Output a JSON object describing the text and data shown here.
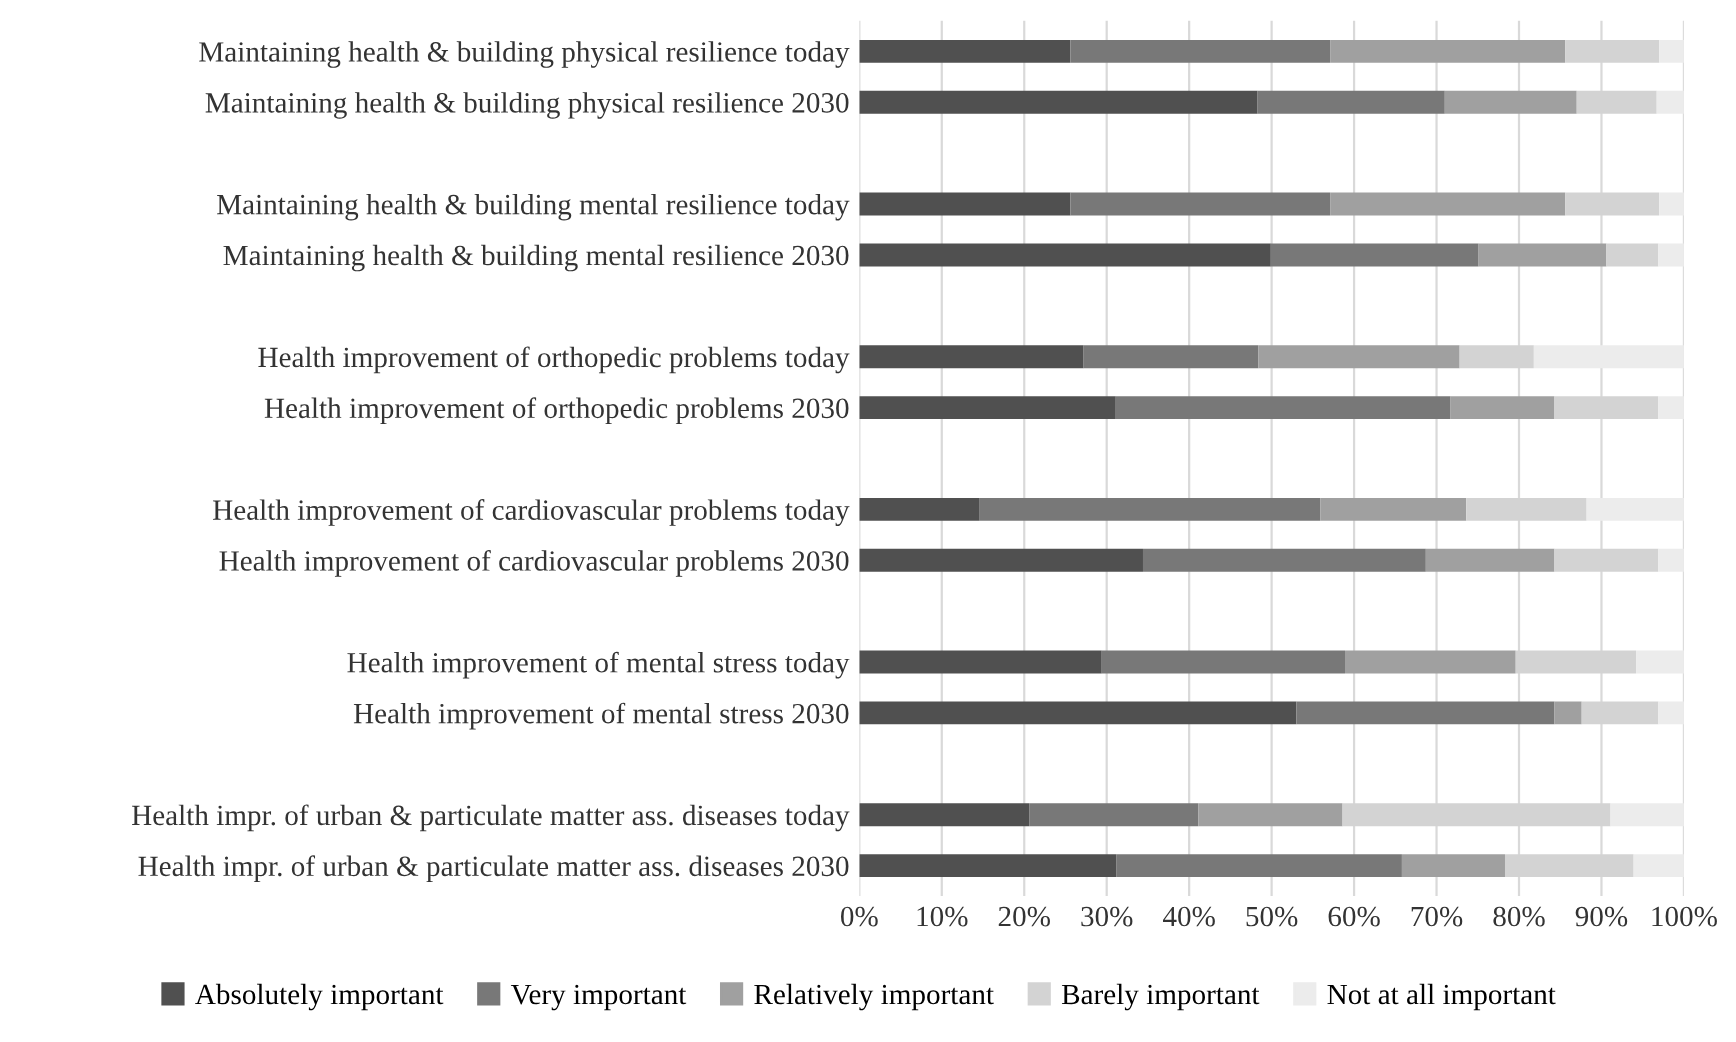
{
  "chart_data": {
    "type": "bar",
    "orientation": "horizontal",
    "stacked": true,
    "categories": [
      "Maintaining health & building physical resilience today",
      "Maintaining health & building physical resilience 2030",
      "Maintaining health & building mental resilience today",
      "Maintaining health & building mental resilience 2030",
      "Health improvement of orthopedic problems today",
      "Health improvement of orthopedic problems 2030",
      "Health improvement of cardiovascular problems today",
      "Health improvement of cardiovascular problems 2030",
      "Health improvement of mental stress today",
      "Health improvement of mental stress 2030",
      "Health impr. of urban & particulate matter ass. diseases today",
      "Health impr. of urban & particulate matter ass. diseases 2030"
    ],
    "series": [
      {
        "name": "Absolutely important",
        "color": "#505050",
        "values": [
          25.6,
          48.3,
          25.6,
          49.9,
          27.2,
          31.1,
          14.6,
          34.4,
          29.4,
          53.0,
          20.6,
          31.2
        ]
      },
      {
        "name": "Very important",
        "color": "#787878",
        "values": [
          31.5,
          22.7,
          31.5,
          25.2,
          21.2,
          40.6,
          41.3,
          34.3,
          29.5,
          31.3,
          20.5,
          34.6
        ]
      },
      {
        "name": "Relatively important",
        "color": "#a0a0a0",
        "values": [
          28.5,
          16.0,
          28.5,
          15.5,
          24.4,
          12.6,
          17.7,
          15.6,
          20.7,
          3.3,
          17.5,
          12.5
        ]
      },
      {
        "name": "Barely important",
        "color": "#d3d3d3",
        "values": [
          11.4,
          9.7,
          11.4,
          6.3,
          9.0,
          12.6,
          14.6,
          12.6,
          14.6,
          9.3,
          32.5,
          15.6
        ]
      },
      {
        "name": "Not at all important",
        "color": "#ececec",
        "values": [
          3.0,
          3.3,
          3.0,
          3.1,
          18.2,
          3.1,
          11.8,
          3.1,
          5.8,
          3.1,
          8.9,
          6.1
        ]
      }
    ],
    "xlim": [
      0,
      100
    ],
    "xticks": [
      {
        "value": 0,
        "label": "0%"
      },
      {
        "value": 10,
        "label": "10%"
      },
      {
        "value": 20,
        "label": "20%"
      },
      {
        "value": 30,
        "label": "30%"
      },
      {
        "value": 40,
        "label": "40%"
      },
      {
        "value": 50,
        "label": "50%"
      },
      {
        "value": 60,
        "label": "60%"
      },
      {
        "value": 70,
        "label": "70%"
      },
      {
        "value": 80,
        "label": "80%"
      },
      {
        "value": 90,
        "label": "90%"
      },
      {
        "value": 100,
        "label": "100%"
      }
    ],
    "grid": "x",
    "legend": "bottom"
  }
}
